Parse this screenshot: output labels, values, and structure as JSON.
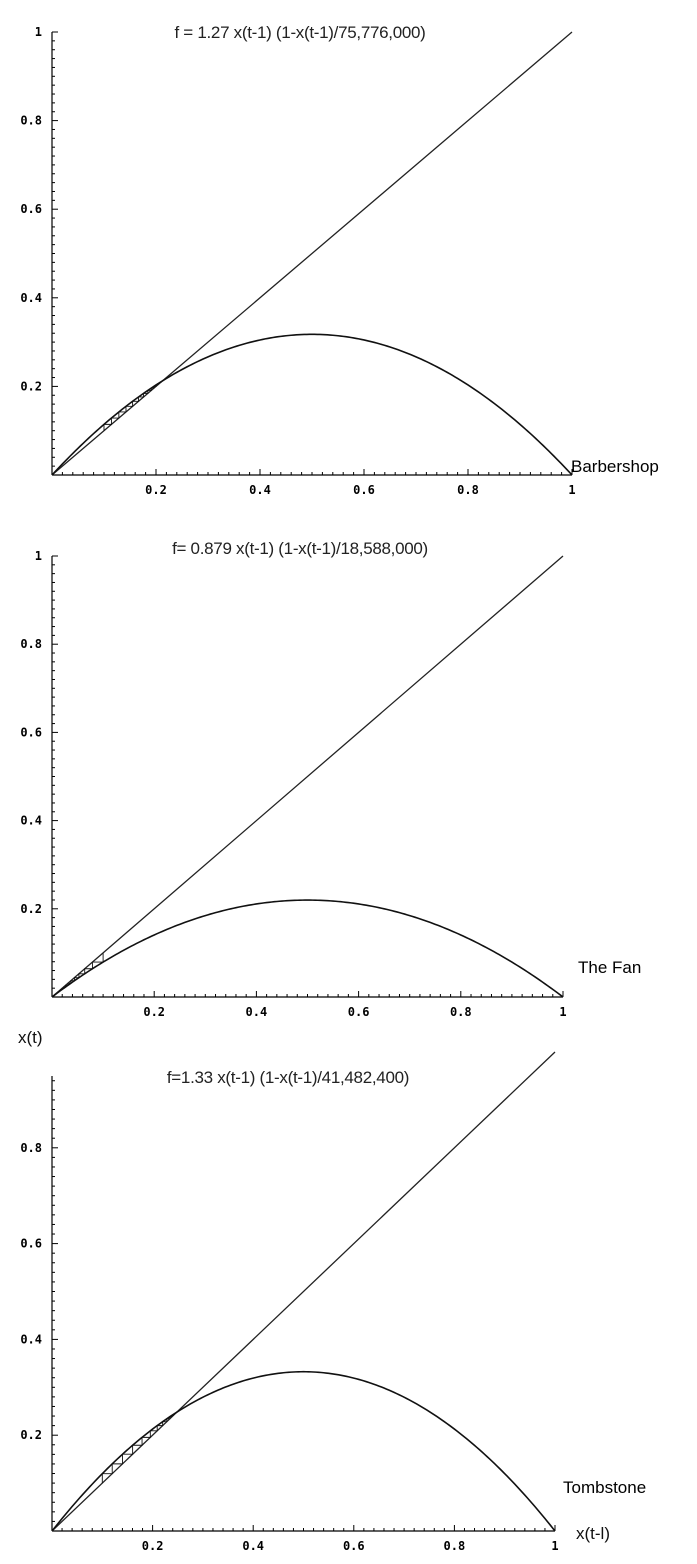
{
  "chart_data": [
    {
      "type": "line",
      "title": "f = 1.27 x(t-1) (1-x(t-1)/75,776,000)",
      "label": "Barbershop",
      "r": 1.27,
      "xlim": [
        0,
        1
      ],
      "ylim": [
        0,
        1
      ],
      "x_ticks": [
        "0.2",
        "0.4",
        "0.6",
        "0.8",
        "1"
      ],
      "y_ticks": [
        "0.2",
        "0.4",
        "0.6",
        "0.8",
        "1"
      ],
      "curve_peak": 0.3175,
      "series": [
        {
          "values": [
            [
              0,
              0
            ],
            [
              1,
              1
            ]
          ]
        },
        {
          "values": [
            [
              0,
              0
            ],
            [
              0.1,
              0.114
            ],
            [
              0.2,
              0.203
            ],
            [
              0.3,
              0.267
            ],
            [
              0.4,
              0.305
            ],
            [
              0.5,
              0.3175
            ],
            [
              0.6,
              0.305
            ],
            [
              0.7,
              0.267
            ],
            [
              0.8,
              0.203
            ],
            [
              0.9,
              0.114
            ],
            [
              1,
              0
            ]
          ]
        },
        {
          "x_start": 0.1,
          "x_end": 0.21
        }
      ],
      "xlabel": "",
      "ylabel": ""
    },
    {
      "type": "line",
      "title": "f= 0.879 x(t-1) (1-x(t-1)/18,588,000)",
      "label": "The Fan",
      "r": 0.879,
      "xlim": [
        0,
        1
      ],
      "ylim": [
        0,
        1
      ],
      "x_ticks": [
        "0.2",
        "0.4",
        "0.6",
        "0.8",
        "1"
      ],
      "y_ticks": [
        "0.2",
        "0.4",
        "0.6",
        "0.8",
        "1"
      ],
      "curve_peak": 0.22,
      "series": [
        {
          "values": [
            [
              0,
              0
            ],
            [
              1,
              1
            ]
          ]
        },
        {
          "values": [
            [
              0,
              0
            ],
            [
              0.1,
              0.079
            ],
            [
              0.2,
              0.141
            ],
            [
              0.3,
              0.185
            ],
            [
              0.4,
              0.211
            ],
            [
              0.5,
              0.22
            ],
            [
              0.6,
              0.211
            ],
            [
              0.7,
              0.185
            ],
            [
              0.8,
              0.141
            ],
            [
              0.9,
              0.079
            ],
            [
              1,
              0
            ]
          ]
        },
        {
          "x_start": 0.1,
          "x_end": 0.01
        }
      ],
      "xlabel": "",
      "ylabel": ""
    },
    {
      "type": "line",
      "title": "f=1.33 x(t-1) (1-x(t-1)/41,482,400)",
      "label": "Tombstone",
      "r": 1.33,
      "xlim": [
        0,
        1
      ],
      "ylim": [
        0,
        0.95
      ],
      "x_ticks": [
        "0.2",
        "0.4",
        "0.6",
        "0.8",
        "1"
      ],
      "y_ticks": [
        "0.2",
        "0.4",
        "0.6",
        "0.8"
      ],
      "curve_peak": 0.3325,
      "series": [
        {
          "values": [
            [
              0,
              0
            ],
            [
              1,
              1
            ]
          ]
        },
        {
          "values": [
            [
              0,
              0
            ],
            [
              0.1,
              0.12
            ],
            [
              0.2,
              0.213
            ],
            [
              0.3,
              0.279
            ],
            [
              0.4,
              0.319
            ],
            [
              0.5,
              0.3325
            ],
            [
              0.6,
              0.319
            ],
            [
              0.7,
              0.279
            ],
            [
              0.8,
              0.213
            ],
            [
              0.9,
              0.12
            ],
            [
              1,
              0
            ]
          ]
        },
        {
          "x_start": 0.1,
          "x_end": 0.245
        }
      ],
      "xlabel": "x(t-l)",
      "ylabel": "x(t)"
    }
  ]
}
